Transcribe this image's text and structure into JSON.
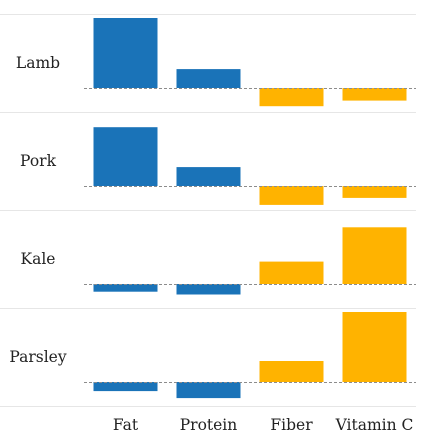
{
  "chart_data": {
    "type": "bar",
    "layout": "small-multiples-rows",
    "title": "",
    "xlabel": "",
    "ylabel": "",
    "categories": [
      "Fat",
      "Protein",
      "Fiber",
      "Vitamin C"
    ],
    "rows": [
      {
        "name": "Lamb",
        "values": [
          1.0,
          0.27,
          -0.26,
          -0.18
        ]
      },
      {
        "name": "Pork",
        "values": [
          0.84,
          0.27,
          -0.27,
          -0.17
        ]
      },
      {
        "name": "Kale",
        "values": [
          -0.11,
          -0.15,
          0.32,
          0.81
        ]
      },
      {
        "name": "Parsley",
        "values": [
          -0.13,
          -0.23,
          0.3,
          1.0
        ]
      }
    ],
    "ylim": [
      -0.3,
      1.0
    ],
    "grid": false,
    "legend": "none",
    "colors": {
      "nutrient_group_1": "#1a73b8",
      "nutrient_group_2": "#ffb300"
    },
    "category_color_groups": [
      "nutrient_group_1",
      "nutrient_group_1",
      "nutrient_group_2",
      "nutrient_group_2"
    ]
  }
}
